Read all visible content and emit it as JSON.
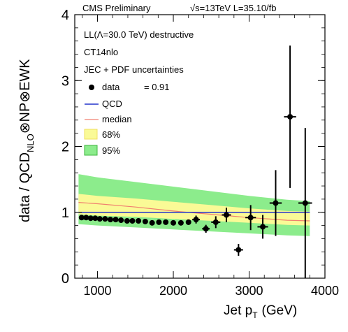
{
  "chart_data": {
    "type": "scatter",
    "header": "CMS Preliminary",
    "energy": "√s=13TeV L=35.10/fb",
    "xlabel": "Jet p",
    "xlabel_sub": "T",
    "xlabel_unit": "(GeV)",
    "ylabel_parts": {
      "a": "data / QCD",
      "sub": "NLO",
      "b": "⊗NP⊗EWK"
    },
    "xlim": [
      700,
      4000
    ],
    "ylim": [
      0,
      4
    ],
    "xticks": [
      1000,
      2000,
      3000,
      4000
    ],
    "yticks": [
      0,
      1,
      2,
      3,
      4
    ],
    "grid": false,
    "legend_placement": "top-left",
    "annotations": {
      "model": "LL(Λ=30.0 TeV) destructive",
      "pdf": "CT14nlo",
      "uncertainties": "JEC + PDF uncertainties",
      "chi_value": "= 0.91"
    },
    "legend": [
      {
        "key": "data",
        "label": "data",
        "marker": "dot",
        "color": "#000000"
      },
      {
        "key": "qcd",
        "label": "QCD",
        "marker": "line",
        "color": "#2233cc"
      },
      {
        "key": "median",
        "label": "median",
        "marker": "line",
        "color": "#f08070"
      },
      {
        "key": "band68",
        "label": "68%",
        "marker": "box",
        "color": "#fafa96"
      },
      {
        "key": "band95",
        "label": "95%",
        "marker": "box",
        "color": "#8cec8c"
      }
    ],
    "colors": {
      "qcd": "#2233cc",
      "median": "#f08070",
      "band68": "#fafa96",
      "band95": "#8cec8c",
      "data": "#000000"
    },
    "qcd_level": 1.0,
    "bands": {
      "x": [
        750,
        1000,
        1500,
        2000,
        2500,
        3000,
        3500,
        3800
      ],
      "band95_upper": [
        1.58,
        1.53,
        1.46,
        1.39,
        1.32,
        1.25,
        1.19,
        1.17
      ],
      "band95_lower": [
        0.82,
        0.8,
        0.77,
        0.74,
        0.71,
        0.68,
        0.65,
        0.64
      ],
      "band68_upper": [
        1.28,
        1.25,
        1.21,
        1.16,
        1.11,
        1.06,
        1.02,
        1.01
      ],
      "band68_lower": [
        0.97,
        0.95,
        0.93,
        0.9,
        0.87,
        0.84,
        0.81,
        0.8
      ],
      "median": [
        1.15,
        1.13,
        1.08,
        1.02,
        0.97,
        0.92,
        0.88,
        0.87
      ]
    },
    "series": [
      {
        "name": "data",
        "points": [
          {
            "x": 790,
            "y": 0.92,
            "ex": 0,
            "ey": 0.02
          },
          {
            "x": 850,
            "y": 0.92,
            "ex": 0,
            "ey": 0.02
          },
          {
            "x": 910,
            "y": 0.91,
            "ex": 0,
            "ey": 0.02
          },
          {
            "x": 970,
            "y": 0.91,
            "ex": 0,
            "ey": 0.02
          },
          {
            "x": 1030,
            "y": 0.9,
            "ex": 0,
            "ey": 0.02
          },
          {
            "x": 1100,
            "y": 0.9,
            "ex": 0,
            "ey": 0.02
          },
          {
            "x": 1170,
            "y": 0.89,
            "ex": 0,
            "ey": 0.02
          },
          {
            "x": 1240,
            "y": 0.89,
            "ex": 0,
            "ey": 0.02
          },
          {
            "x": 1310,
            "y": 0.88,
            "ex": 0,
            "ey": 0.02
          },
          {
            "x": 1390,
            "y": 0.87,
            "ex": 0,
            "ey": 0.02
          },
          {
            "x": 1460,
            "y": 0.87,
            "ex": 0,
            "ey": 0.02
          },
          {
            "x": 1540,
            "y": 0.87,
            "ex": 0,
            "ey": 0.02
          },
          {
            "x": 1630,
            "y": 0.86,
            "ex": 0,
            "ey": 0.02
          },
          {
            "x": 1720,
            "y": 0.84,
            "ex": 0,
            "ey": 0.02
          },
          {
            "x": 1810,
            "y": 0.85,
            "ex": 0,
            "ey": 0.02
          },
          {
            "x": 1900,
            "y": 0.85,
            "ex": 0,
            "ey": 0.02
          },
          {
            "x": 2000,
            "y": 0.84,
            "ex": 0,
            "ey": 0.03
          },
          {
            "x": 2100,
            "y": 0.84,
            "ex": 0,
            "ey": 0.03
          },
          {
            "x": 2200,
            "y": 0.85,
            "ex": 0,
            "ey": 0.04
          },
          {
            "x": 2300,
            "y": 0.89,
            "ex": 50,
            "ey": 0.06
          },
          {
            "x": 2430,
            "y": 0.75,
            "ex": 50,
            "ey": 0.06
          },
          {
            "x": 2560,
            "y": 0.85,
            "ex": 60,
            "ey": 0.09
          },
          {
            "x": 2700,
            "y": 0.96,
            "ex": 60,
            "ey": 0.11
          },
          {
            "x": 2860,
            "y": 0.43,
            "ex": 60,
            "ey": 0.09
          },
          {
            "x": 3020,
            "y": 0.92,
            "ex": 70,
            "ey": 0.19
          },
          {
            "x": 3180,
            "y": 0.78,
            "ex": 70,
            "ey": 0.18
          },
          {
            "x": 3350,
            "y": 1.14,
            "ex": 80,
            "ey": 0.5
          },
          {
            "x": 3540,
            "y": 2.45,
            "ex": 80,
            "ey": 1.08
          },
          {
            "x": 3740,
            "y": 1.14,
            "ex": 90,
            "ey": 1.14
          }
        ]
      }
    ]
  }
}
